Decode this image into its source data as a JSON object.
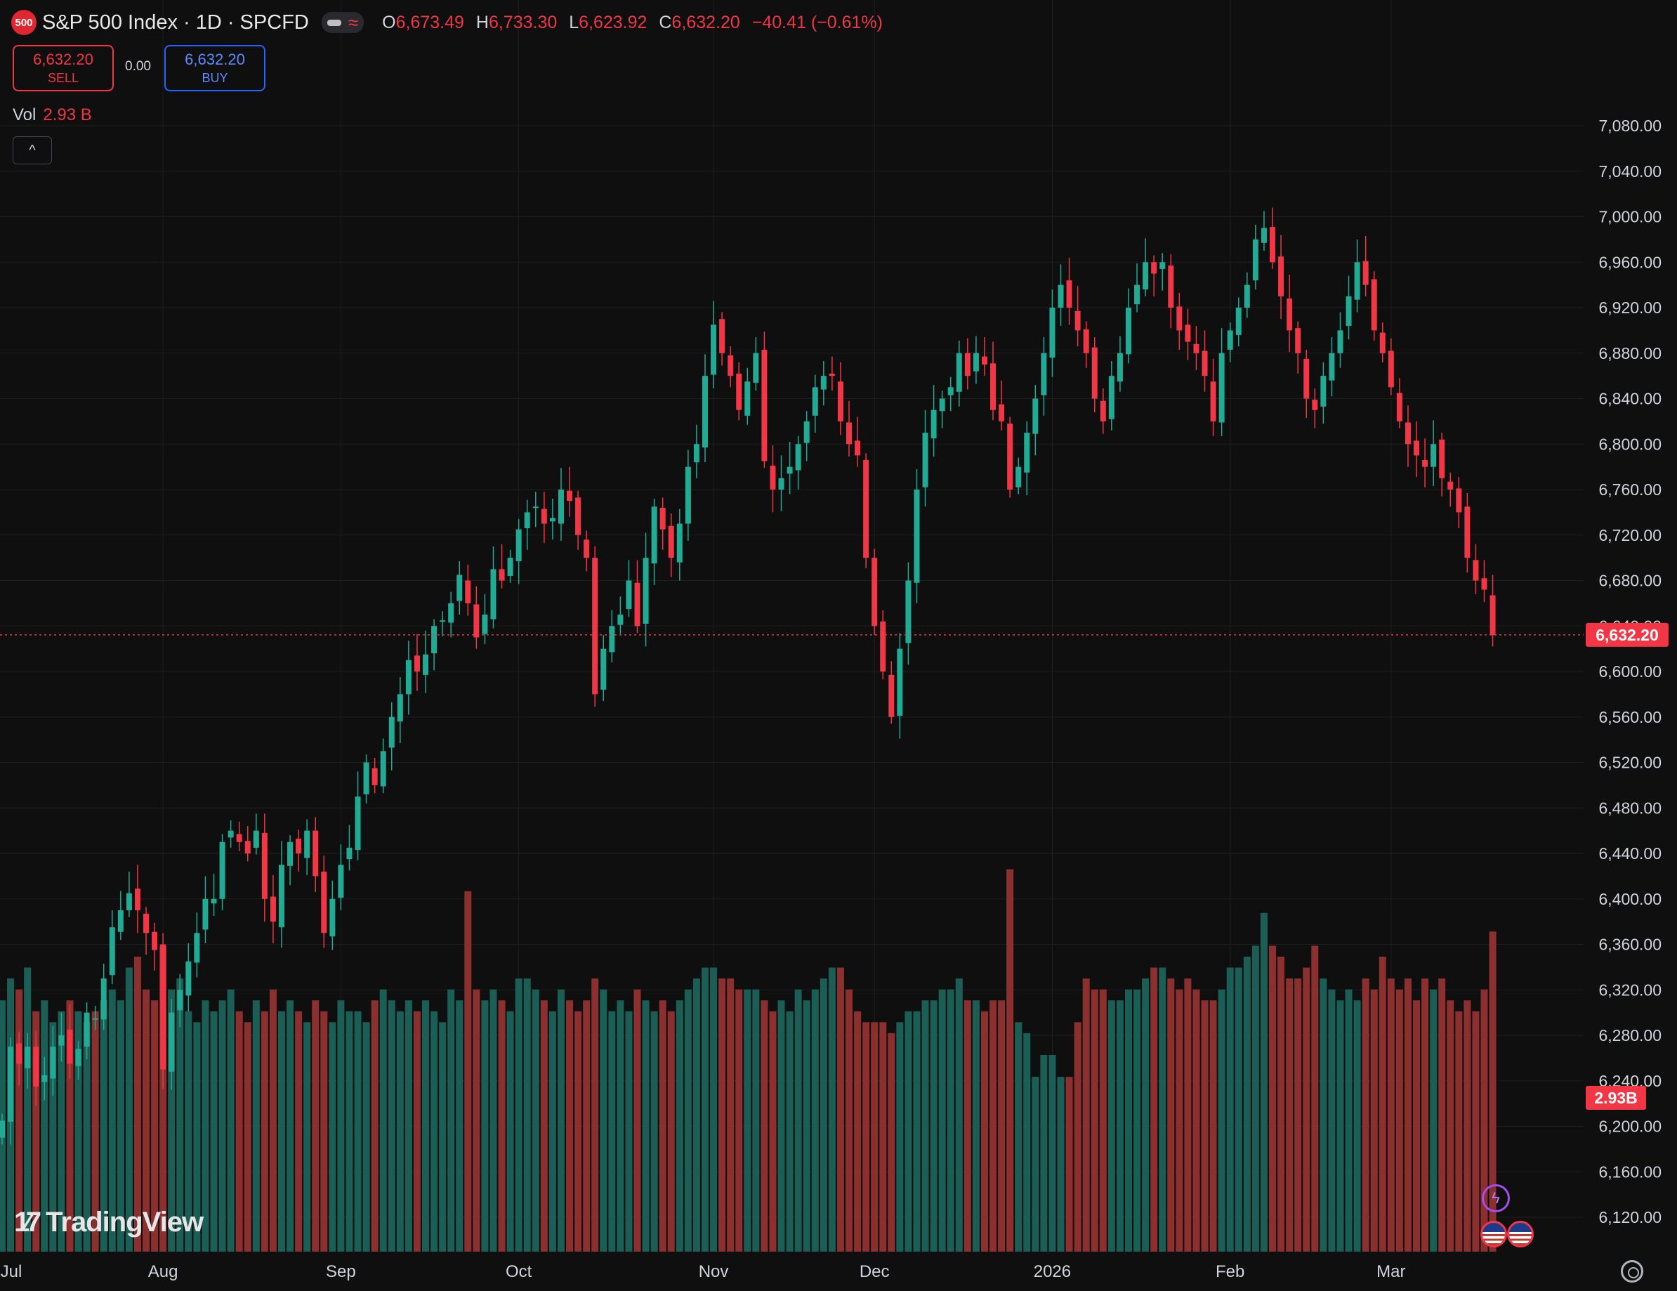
{
  "header": {
    "badge": "500",
    "title": "S&P 500 Index · 1D · SPCFD",
    "ohlc": [
      {
        "k": "O",
        "v": "6,673.49"
      },
      {
        "k": "H",
        "v": "6,733.30"
      },
      {
        "k": "L",
        "v": "6,623.92"
      },
      {
        "k": "C",
        "v": "6,632.20"
      },
      {
        "k": "",
        "v": "−40.41 (−0.61%)"
      }
    ]
  },
  "trade": {
    "sell_price": "6,632.20",
    "sell_label": "SELL",
    "buy_price": "6,632.20",
    "buy_label": "BUY",
    "spread": "0.00"
  },
  "volume_label": "Vol",
  "volume_value": "2.93 B",
  "collapse_icon": "^",
  "branding": {
    "name": "TradingView"
  },
  "colors": {
    "up": "#22ab94",
    "down": "#f23645",
    "up_vol": "#1b5e55",
    "down_vol": "#8c2f2f",
    "bg": "#0f0f0f",
    "grid": "#1f1f1f"
  },
  "chart_data": {
    "type": "candlestick",
    "ylim": [
      6090,
      7100
    ],
    "y_ticks": [
      6120,
      6160,
      6200,
      6240,
      6280,
      6320,
      6360,
      6400,
      6440,
      6480,
      6520,
      6560,
      6600,
      6640,
      6680,
      6720,
      6760,
      6800,
      6840,
      6880,
      6920,
      6960,
      7000,
      7040,
      7080
    ],
    "x_labels": [
      {
        "label": "Jul",
        "idx": -4
      },
      {
        "label": "Aug",
        "idx": 19
      },
      {
        "label": "Sep",
        "idx": 40
      },
      {
        "label": "Oct",
        "idx": 61
      },
      {
        "label": "Nov",
        "idx": 84
      },
      {
        "label": "Dec",
        "idx": 103
      },
      {
        "label": "2026",
        "idx": 124
      },
      {
        "label": "Feb",
        "idx": 145
      },
      {
        "label": "Mar",
        "idx": 164
      }
    ],
    "last_price": 6632.2,
    "last_price_label": "6,632.20",
    "last_volume_label": "2.93B",
    "volume_max": 3.6,
    "closes": [
      6205,
      6270,
      6255,
      6270,
      6235,
      6245,
      6270,
      6280,
      6255,
      6268,
      6300,
      6295,
      6330,
      6375,
      6390,
      6405,
      6390,
      6370,
      6355,
      6250,
      6300,
      6320,
      6345,
      6370,
      6400,
      6400,
      6450,
      6460,
      6450,
      6440,
      6460,
      6400,
      6380,
      6430,
      6450,
      6440,
      6460,
      6420,
      6370,
      6400,
      6430,
      6445,
      6490,
      6520,
      6500,
      6530,
      6560,
      6580,
      6610,
      6600,
      6615,
      6640,
      6645,
      6660,
      6685,
      6660,
      6630,
      6650,
      6690,
      6680,
      6700,
      6725,
      6740,
      6745,
      6730,
      6735,
      6760,
      6750,
      6720,
      6700,
      6580,
      6620,
      6640,
      6650,
      6680,
      6640,
      6700,
      6745,
      6725,
      6700,
      6730,
      6780,
      6800,
      6860,
      6905,
      6880,
      6860,
      6830,
      6855,
      6880,
      6785,
      6760,
      6770,
      6780,
      6800,
      6820,
      6850,
      6860,
      6860,
      6820,
      6800,
      6790,
      6700,
      6640,
      6600,
      6560,
      6620,
      6680,
      6760,
      6810,
      6830,
      6840,
      6850,
      6880,
      6860,
      6880,
      6870,
      6830,
      6820,
      6760,
      6780,
      6810,
      6840,
      6880,
      6920,
      6940,
      6920,
      6900,
      6880,
      6840,
      6820,
      6860,
      6880,
      6920,
      6940,
      6960,
      6950,
      6960,
      6920,
      6900,
      6890,
      6880,
      6860,
      6820,
      6880,
      6900,
      6920,
      6940,
      6980,
      6990,
      6960,
      6930,
      6900,
      6880,
      6840,
      6830,
      6860,
      6880,
      6900,
      6930,
      6960,
      6940,
      6900,
      6880,
      6850,
      6820,
      6800,
      6790,
      6780,
      6800,
      6770,
      6760,
      6740,
      6700,
      6680,
      6672,
      6632
    ],
    "volumes": [
      2.3,
      2.5,
      2.4,
      2.6,
      2.2,
      2.3,
      2.1,
      2.2,
      2.3,
      2.2,
      2.1,
      2.2,
      2.3,
      2.4,
      2.3,
      2.6,
      2.7,
      2.4,
      2.3,
      2.8,
      2.4,
      2.5,
      2.2,
      2.1,
      2.3,
      2.2,
      2.3,
      2.4,
      2.2,
      2.1,
      2.3,
      2.2,
      2.4,
      2.2,
      2.3,
      2.2,
      2.1,
      2.3,
      2.2,
      2.1,
      2.3,
      2.2,
      2.2,
      2.1,
      2.3,
      2.4,
      2.3,
      2.2,
      2.3,
      2.2,
      2.3,
      2.2,
      2.1,
      2.4,
      2.3,
      3.3,
      2.4,
      2.3,
      2.4,
      2.3,
      2.2,
      2.5,
      2.5,
      2.4,
      2.3,
      2.2,
      2.4,
      2.3,
      2.2,
      2.3,
      2.5,
      2.4,
      2.2,
      2.3,
      2.2,
      2.4,
      2.3,
      2.2,
      2.3,
      2.2,
      2.3,
      2.4,
      2.5,
      2.6,
      2.6,
      2.5,
      2.5,
      2.4,
      2.4,
      2.4,
      2.3,
      2.2,
      2.3,
      2.2,
      2.4,
      2.3,
      2.4,
      2.5,
      2.6,
      2.6,
      2.4,
      2.2,
      2.1,
      2.1,
      2.1,
      2.0,
      2.1,
      2.2,
      2.2,
      2.3,
      2.3,
      2.4,
      2.4,
      2.5,
      2.3,
      2.3,
      2.2,
      2.3,
      2.3,
      3.5,
      2.1,
      2.0,
      1.6,
      1.8,
      1.8,
      1.6,
      1.6,
      2.1,
      2.5,
      2.4,
      2.4,
      2.3,
      2.3,
      2.4,
      2.4,
      2.5,
      2.6,
      2.6,
      2.5,
      2.4,
      2.5,
      2.4,
      2.3,
      2.3,
      2.4,
      2.6,
      2.6,
      2.7,
      2.8,
      3.1,
      2.8,
      2.7,
      2.5,
      2.5,
      2.6,
      2.8,
      2.5,
      2.4,
      2.3,
      2.4,
      2.3,
      2.5,
      2.4,
      2.7,
      2.5,
      2.4,
      2.5,
      2.3,
      2.5,
      2.4,
      2.5,
      2.3,
      2.2,
      2.3,
      2.2,
      2.4,
      2.93
    ]
  }
}
